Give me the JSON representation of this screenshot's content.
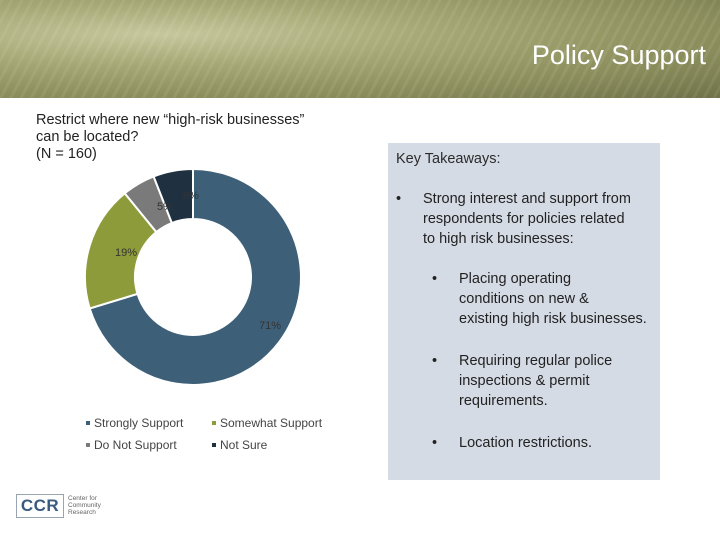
{
  "header": {
    "title": "Policy Support"
  },
  "question": {
    "lines": [
      "Restrict where new “high-risk businesses”",
      "can be located?",
      "(N = 160)"
    ]
  },
  "chart_data": {
    "type": "pie",
    "style": "donut",
    "title": "Restrict where new “high-risk businesses” can be located? (N = 160)",
    "categories": [
      "Strongly Support",
      "Somewhat Support",
      "Do Not Support",
      "Not Sure"
    ],
    "values": [
      71,
      19,
      5,
      6
    ],
    "labels": [
      "71%",
      "19%",
      "5%",
      "6%"
    ],
    "colors": [
      "#3d6078",
      "#8d9b3a",
      "#7a7a7a",
      "#1f3140"
    ],
    "legend_position": "bottom"
  },
  "takeaways": {
    "title": "Key Takeaways:",
    "main_bullet": "•",
    "sub_bullet": "•",
    "main_lines": [
      "Strong interest and support from",
      "respondents for policies related",
      "to high risk businesses:"
    ],
    "items": [
      {
        "lines": [
          "Placing operating",
          "conditions on new &",
          "existing high risk businesses."
        ]
      },
      {
        "lines": [
          "Requiring regular police",
          "inspections & permit",
          "requirements."
        ]
      },
      {
        "lines": [
          "Location restrictions."
        ]
      }
    ]
  },
  "logo": {
    "abbr": "CCR",
    "name_lines": [
      "Center for",
      "Community",
      "Research"
    ]
  }
}
